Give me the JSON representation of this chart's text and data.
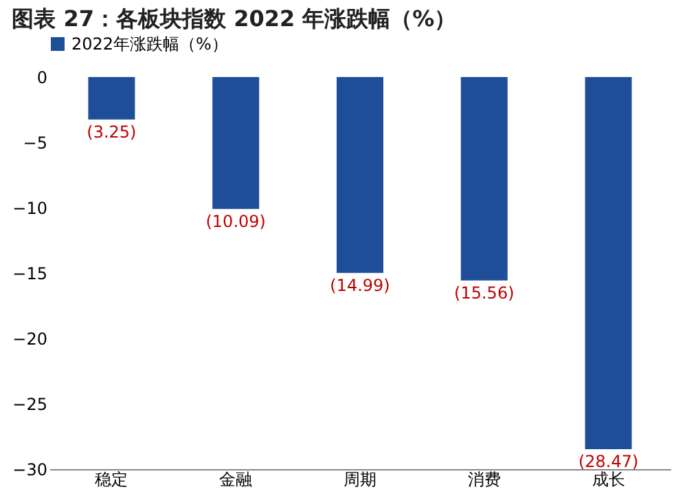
{
  "chart_data": {
    "type": "bar",
    "title": "图表 27：各板块指数 2022 年涨跌幅（%）",
    "categories": [
      "稳定",
      "金融",
      "周期",
      "消费",
      "成长"
    ],
    "series": [
      {
        "name": "2022年涨跌幅（%）",
        "color": "#1f4e99",
        "values": [
          -3.25,
          -10.09,
          -14.99,
          -15.56,
          -28.47
        ],
        "value_labels": [
          "(3.25)",
          "(10.09)",
          "(14.99)",
          "(15.56)",
          "(28.47)"
        ]
      }
    ],
    "ylim": [
      -30,
      0
    ],
    "yticks": [
      0,
      -5,
      -10,
      -15,
      -20,
      -25,
      -30
    ],
    "grid": false,
    "legend": "top"
  }
}
